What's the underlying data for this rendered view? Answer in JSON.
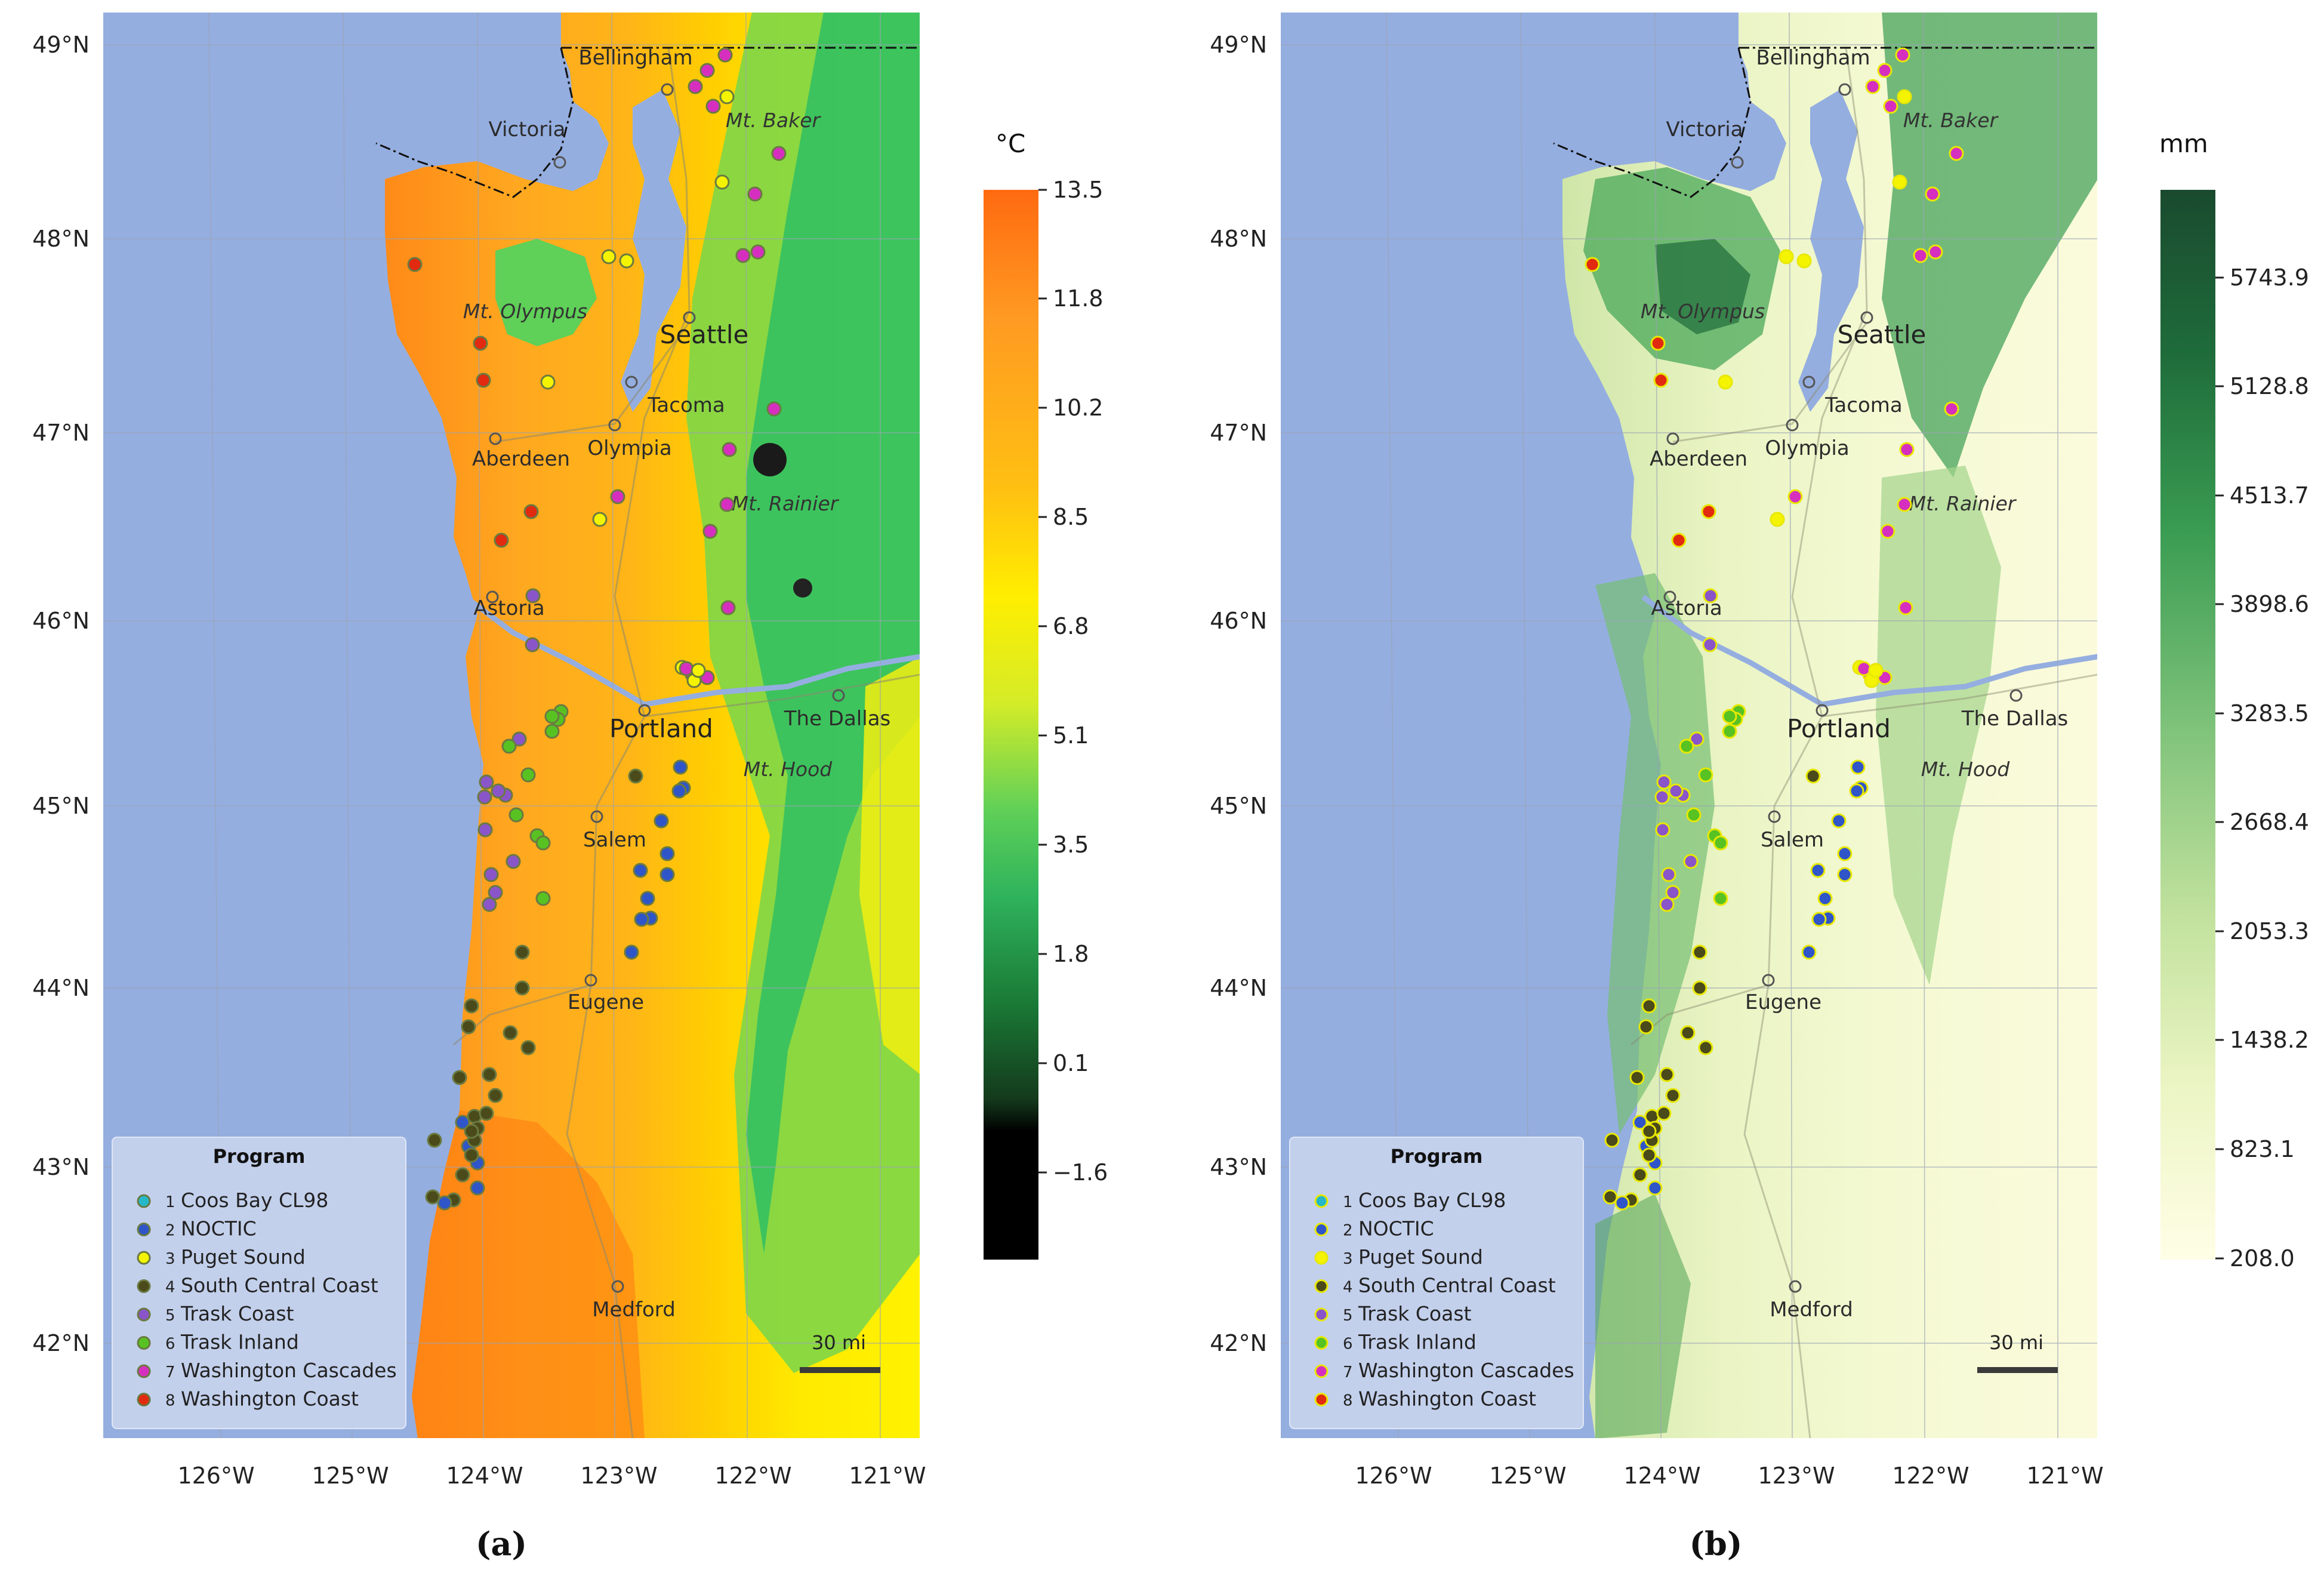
{
  "panels": [
    {
      "id": "a",
      "panel_label": "(a)",
      "variable": "temperature",
      "colorbar": {
        "unit": "°C",
        "ticks": [
          "13.5",
          "11.8",
          "10.2",
          "8.5",
          "6.8",
          "5.1",
          "3.5",
          "1.8",
          "0.1",
          "−1.6"
        ],
        "colors": [
          "#ff6a10",
          "#ff9a22",
          "#ffc012",
          "#ffee00",
          "#d4ec28",
          "#7ed648",
          "#2fbf63",
          "#1a8a3e",
          "#184c24",
          "#000000"
        ]
      }
    },
    {
      "id": "b",
      "panel_label": "(b)",
      "variable": "precipitation",
      "colorbar": {
        "unit": "mm",
        "ticks": [
          "5743.9",
          "5128.8",
          "4513.7",
          "3898.6",
          "3283.5",
          "2668.4",
          "2053.3",
          "1438.2",
          "823.1",
          "208.0"
        ],
        "colors": [
          "#1a4a2e",
          "#1e6b3a",
          "#2a8a46",
          "#4aa85a",
          "#76bf74",
          "#a4d48c",
          "#c9e6a4",
          "#e4f2bd",
          "#f4f9cf",
          "#fffee6"
        ]
      }
    }
  ],
  "axes": {
    "lat_ticks": [
      "49°N",
      "48°N",
      "47°N",
      "46°N",
      "45°N",
      "44°N",
      "43°N",
      "42°N"
    ],
    "lon_ticks": [
      "126°W",
      "125°W",
      "124°W",
      "123°W",
      "122°W",
      "121°W"
    ]
  },
  "places": {
    "cities": [
      "Bellingham",
      "Victoria",
      "Seattle",
      "Tacoma",
      "Aberdeen",
      "Olympia",
      "Astoria",
      "Portland",
      "The Dallas",
      "Salem",
      "Eugene",
      "Medford"
    ],
    "mountains": [
      "Mt. Baker",
      "Mt. Olympus",
      "Mt. Rainier",
      "Mt. Hood"
    ]
  },
  "scale_bar": {
    "label": "30 mi"
  },
  "legend": {
    "title": "Program",
    "items": [
      {
        "num": "1",
        "label": "Coos Bay CL98",
        "color": "#25b8c8"
      },
      {
        "num": "2",
        "label": "NOCTIC",
        "color": "#2f55c8"
      },
      {
        "num": "3",
        "label": "Puget Sound",
        "color": "#f4f400"
      },
      {
        "num": "4",
        "label": "South Central Coast",
        "color": "#4a4a1a"
      },
      {
        "num": "5",
        "label": "Trask Coast",
        "color": "#8a55c8"
      },
      {
        "num": "6",
        "label": "Trask Inland",
        "color": "#58c222"
      },
      {
        "num": "7",
        "label": "Washington Cascades",
        "color": "#d62fbf"
      },
      {
        "num": "8",
        "label": "Washington Coast",
        "color": "#e12a0f"
      }
    ]
  },
  "colors": {
    "ocean": "#95aee0",
    "point_outline_a": "#6a7a40",
    "point_outline_b": "#e8e800"
  }
}
